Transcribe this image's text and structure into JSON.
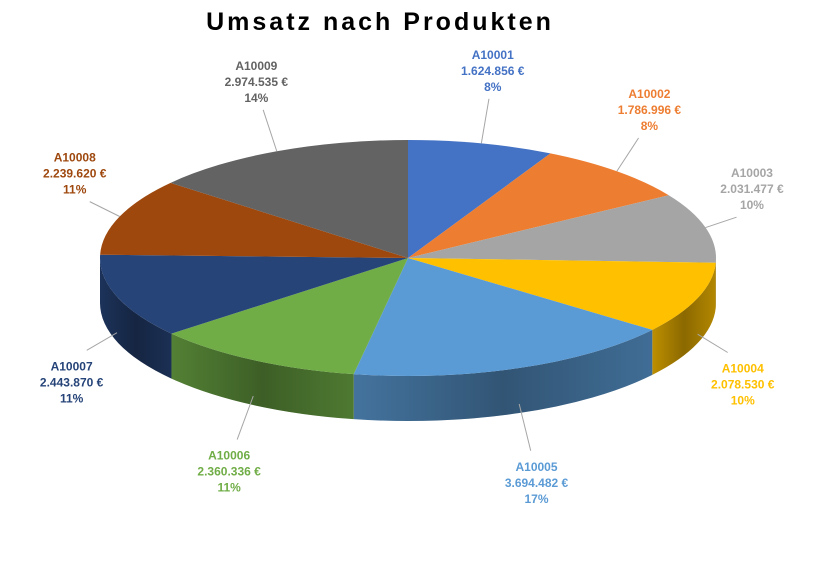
{
  "chart_data": {
    "type": "pie",
    "title": "Umsatz nach Produkten",
    "categories": [
      "A10001",
      "A10002",
      "A10003",
      "A10004",
      "A10005",
      "A10006",
      "A10007",
      "A10008",
      "A10009"
    ],
    "values": [
      1624856,
      1786996,
      2031477,
      2078530,
      3694482,
      2360336,
      2443870,
      2239620,
      2974535
    ],
    "value_labels": [
      "1.624.856 €",
      "1.786.996 €",
      "2.031.477 €",
      "2.078.530 €",
      "3.694.482 €",
      "2.360.336 €",
      "2.443.870 €",
      "2.239.620 €",
      "2.974.535 €"
    ],
    "percent_labels": [
      "8%",
      "8%",
      "10%",
      "10%",
      "17%",
      "11%",
      "11%",
      "11%",
      "14%"
    ],
    "colors": [
      "#4472C4",
      "#ED7D31",
      "#A5A5A5",
      "#FFC000",
      "#5B9BD5",
      "#70AD47",
      "#264478",
      "#9E480E",
      "#636363"
    ],
    "label_colors": [
      "#4472C4",
      "#ED7D31",
      "#A5A5A5",
      "#FFC000",
      "#5B9BD5",
      "#70AD47",
      "#264478",
      "#9E480E",
      "#636363"
    ],
    "style": "3d-pie",
    "legend": "none"
  }
}
